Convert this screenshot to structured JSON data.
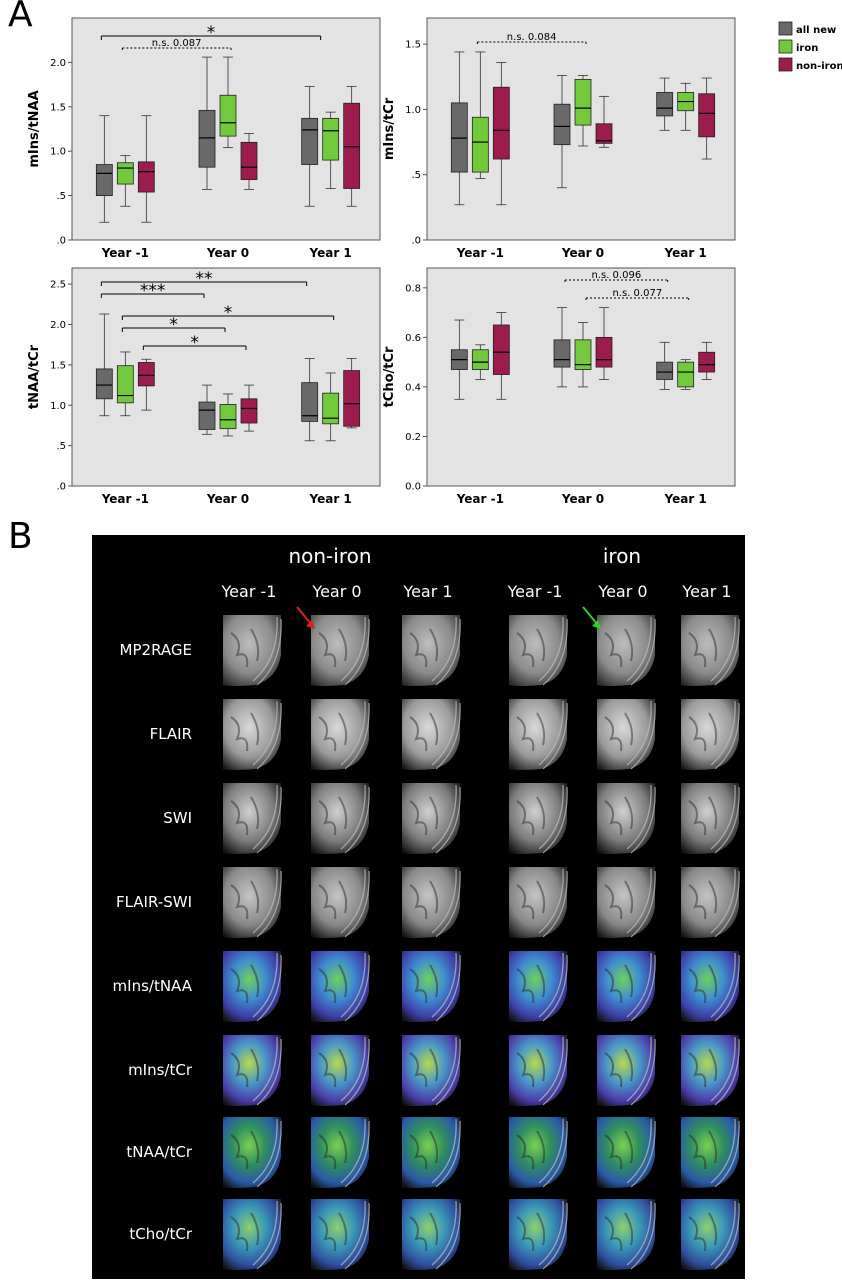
{
  "panel_a": {
    "letter": "A",
    "legend": [
      {
        "label": "all new",
        "color": "#696969"
      },
      {
        "label": "iron",
        "color": "#72c93b"
      },
      {
        "label": "non-iron",
        "color": "#9c1c4e"
      }
    ]
  },
  "panel_b": {
    "letter": "B",
    "groups": [
      "non-iron",
      "iron"
    ],
    "columns": [
      "Year -1",
      "Year 0",
      "Year 1",
      "Year -1",
      "Year 0",
      "Year 1"
    ],
    "rows": [
      "MP2RAGE",
      "FLAIR",
      "SWI",
      "FLAIR-SWI",
      "mIns/tNAA",
      "mIns/tCr",
      "tNAA/tCr",
      "tCho/tCr"
    ],
    "arrows": [
      {
        "group": "non-iron",
        "column": "Year 0",
        "row": "MP2RAGE",
        "color": "#e0201e"
      },
      {
        "group": "iron",
        "column": "Year 0",
        "row": "MP2RAGE",
        "color": "#2fd02a"
      }
    ]
  },
  "chart_data": [
    {
      "type": "box",
      "ylabel": "mIns/tNAA",
      "ylim": [
        0,
        2.5
      ],
      "yticks": [
        ".0",
        ".5",
        "1.0",
        "1.5",
        "2.0"
      ],
      "categories": [
        "Year -1",
        "Year 0",
        "Year 1"
      ],
      "series": [
        {
          "name": "all new",
          "boxes": [
            {
              "min": 0.2,
              "q1": 0.5,
              "median": 0.75,
              "q3": 0.85,
              "max": 1.4
            },
            {
              "min": 0.57,
              "q1": 0.82,
              "median": 1.15,
              "q3": 1.46,
              "max": 2.06
            },
            {
              "min": 0.38,
              "q1": 0.85,
              "median": 1.24,
              "q3": 1.37,
              "max": 1.73
            }
          ]
        },
        {
          "name": "iron",
          "boxes": [
            {
              "min": 0.38,
              "q1": 0.63,
              "median": 0.81,
              "q3": 0.87,
              "max": 0.95
            },
            {
              "min": 1.04,
              "q1": 1.17,
              "median": 1.32,
              "q3": 1.63,
              "max": 2.06
            },
            {
              "min": 0.58,
              "q1": 0.9,
              "median": 1.23,
              "q3": 1.37,
              "max": 1.44
            }
          ]
        },
        {
          "name": "non-iron",
          "boxes": [
            {
              "min": 0.2,
              "q1": 0.54,
              "median": 0.77,
              "q3": 0.88,
              "max": 1.4
            },
            {
              "min": 0.57,
              "q1": 0.68,
              "median": 0.82,
              "q3": 1.1,
              "max": 1.2
            },
            {
              "min": 0.38,
              "q1": 0.58,
              "median": 1.05,
              "q3": 1.54,
              "max": 1.73
            }
          ]
        }
      ],
      "annotations": [
        {
          "text": "*",
          "from": "Year -1",
          "to": "Year 1",
          "style": "solid"
        },
        {
          "text": "n.s. 0.087",
          "from": "Year -1",
          "to": "Year 0",
          "style": "dotted"
        }
      ]
    },
    {
      "type": "box",
      "ylabel": "mIns/tCr",
      "ylim": [
        0,
        1.7
      ],
      "yticks": [
        ".0",
        ".5",
        "1.0",
        "1.5"
      ],
      "categories": [
        "Year -1",
        "Year 0",
        "Year 1"
      ],
      "series": [
        {
          "name": "all new",
          "boxes": [
            {
              "min": 0.27,
              "q1": 0.52,
              "median": 0.78,
              "q3": 1.05,
              "max": 1.44
            },
            {
              "min": 0.4,
              "q1": 0.73,
              "median": 0.87,
              "q3": 1.04,
              "max": 1.26
            },
            {
              "min": 0.84,
              "q1": 0.95,
              "median": 1.01,
              "q3": 1.13,
              "max": 1.24
            }
          ]
        },
        {
          "name": "iron",
          "boxes": [
            {
              "min": 0.47,
              "q1": 0.52,
              "median": 0.75,
              "q3": 0.94,
              "max": 1.44
            },
            {
              "min": 0.72,
              "q1": 0.88,
              "median": 1.01,
              "q3": 1.23,
              "max": 1.26
            },
            {
              "min": 0.84,
              "q1": 0.99,
              "median": 1.06,
              "q3": 1.13,
              "max": 1.2
            }
          ]
        },
        {
          "name": "non-iron",
          "boxes": [
            {
              "min": 0.27,
              "q1": 0.62,
              "median": 0.84,
              "q3": 1.17,
              "max": 1.36
            },
            {
              "min": 0.71,
              "q1": 0.74,
              "median": 0.76,
              "q3": 0.89,
              "max": 1.1
            },
            {
              "min": 0.62,
              "q1": 0.79,
              "median": 0.97,
              "q3": 1.12,
              "max": 1.24
            }
          ]
        }
      ],
      "annotations": [
        {
          "text": "n.s. 0.084",
          "from": "Year -1",
          "to": "Year 0",
          "style": "dotted"
        }
      ]
    },
    {
      "type": "box",
      "ylabel": "tNAA/tCr",
      "ylim": [
        0,
        2.7
      ],
      "yticks": [
        ".0",
        ".5",
        "1.0",
        "1.5",
        "2.0",
        "2.5"
      ],
      "categories": [
        "Year -1",
        "Year 0",
        "Year 1"
      ],
      "series": [
        {
          "name": "all new",
          "boxes": [
            {
              "min": 0.87,
              "q1": 1.08,
              "median": 1.25,
              "q3": 1.45,
              "max": 2.13
            },
            {
              "min": 0.64,
              "q1": 0.7,
              "median": 0.94,
              "q3": 1.04,
              "max": 1.25
            },
            {
              "min": 0.56,
              "q1": 0.8,
              "median": 0.87,
              "q3": 1.28,
              "max": 1.58
            }
          ]
        },
        {
          "name": "iron",
          "boxes": [
            {
              "min": 0.87,
              "q1": 1.03,
              "median": 1.12,
              "q3": 1.49,
              "max": 1.66
            },
            {
              "min": 0.62,
              "q1": 0.71,
              "median": 0.82,
              "q3": 1.01,
              "max": 1.14
            },
            {
              "min": 0.56,
              "q1": 0.77,
              "median": 0.84,
              "q3": 1.15,
              "max": 1.4
            }
          ]
        },
        {
          "name": "non-iron",
          "boxes": [
            {
              "min": 0.94,
              "q1": 1.24,
              "median": 1.37,
              "q3": 1.53,
              "max": 1.57
            },
            {
              "min": 0.68,
              "q1": 0.78,
              "median": 0.96,
              "q3": 1.08,
              "max": 1.25
            },
            {
              "min": 0.72,
              "q1": 0.74,
              "median": 1.02,
              "q3": 1.43,
              "max": 1.58
            }
          ]
        }
      ],
      "annotations": [
        {
          "text": "**",
          "from": "Year -1",
          "to": "Year 1",
          "style": "solid"
        },
        {
          "text": "***",
          "from": "Year -1",
          "to": "Year 0",
          "style": "solid"
        },
        {
          "text": "*",
          "from": "Year -1",
          "to": "Year 1",
          "style": "solid"
        },
        {
          "text": "*",
          "from": "Year -1",
          "to": "Year 0",
          "style": "solid"
        },
        {
          "text": "*",
          "from": "Year -1",
          "to": "Year 0",
          "style": "solid"
        }
      ]
    },
    {
      "type": "box",
      "ylabel": "tCho/tCr",
      "ylim": [
        0,
        0.88
      ],
      "yticks": [
        "0.0",
        "0.2",
        "0.4",
        "0.6",
        "0.8"
      ],
      "categories": [
        "Year -1",
        "Year 0",
        "Year 1"
      ],
      "series": [
        {
          "name": "all new",
          "boxes": [
            {
              "min": 0.35,
              "q1": 0.47,
              "median": 0.51,
              "q3": 0.55,
              "max": 0.67
            },
            {
              "min": 0.4,
              "q1": 0.48,
              "median": 0.51,
              "q3": 0.59,
              "max": 0.72
            },
            {
              "min": 0.39,
              "q1": 0.43,
              "median": 0.46,
              "q3": 0.5,
              "max": 0.58
            }
          ]
        },
        {
          "name": "iron",
          "boxes": [
            {
              "min": 0.43,
              "q1": 0.47,
              "median": 0.5,
              "q3": 0.55,
              "max": 0.57
            },
            {
              "min": 0.4,
              "q1": 0.47,
              "median": 0.49,
              "q3": 0.59,
              "max": 0.66
            },
            {
              "min": 0.39,
              "q1": 0.4,
              "median": 0.46,
              "q3": 0.5,
              "max": 0.51
            }
          ]
        },
        {
          "name": "non-iron",
          "boxes": [
            {
              "min": 0.35,
              "q1": 0.45,
              "median": 0.54,
              "q3": 0.65,
              "max": 0.7
            },
            {
              "min": 0.43,
              "q1": 0.48,
              "median": 0.51,
              "q3": 0.6,
              "max": 0.72
            },
            {
              "min": 0.43,
              "q1": 0.46,
              "median": 0.49,
              "q3": 0.54,
              "max": 0.58
            }
          ]
        }
      ],
      "annotations": [
        {
          "text": "n.s. 0.096",
          "from": "Year 0",
          "to": "Year 1",
          "style": "dotted"
        },
        {
          "text": "n.s. 0.077",
          "from": "Year 0",
          "to": "Year 1",
          "style": "dotted"
        }
      ]
    }
  ]
}
